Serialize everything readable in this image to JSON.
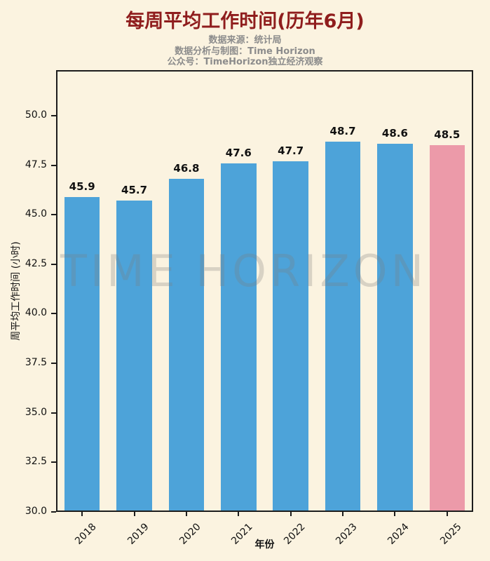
{
  "title": "每周平均工作时间(历年6月)",
  "subtitle_lines": [
    "数据来源：统计局",
    "数据分析与制图：Time Horizon",
    "公众号：TimeHorizon独立经济观察"
  ],
  "watermark": "TIME HORIZON",
  "colors": {
    "background": "#fbf3e0",
    "bar": "#4da3d9",
    "bar_highlight": "#ec9aa9",
    "title": "#8f1d1d",
    "subtitle": "#8c8c8c",
    "axis": "#1c1c1c"
  },
  "chart_data": {
    "type": "bar",
    "title": "每周平均工作时间(历年6月)",
    "categories": [
      "2018",
      "2019",
      "2020",
      "2021",
      "2022",
      "2023",
      "2024",
      "2025"
    ],
    "values": [
      45.9,
      45.7,
      46.8,
      47.6,
      47.7,
      48.7,
      48.6,
      48.5
    ],
    "highlight_category": "2025",
    "xlabel": "年份",
    "ylabel": "周平均工作时间 (小时)",
    "ylim": [
      30,
      52.3
    ],
    "yticks": [
      30.0,
      32.5,
      35.0,
      37.5,
      40.0,
      42.5,
      45.0,
      47.5,
      50.0
    ],
    "grid": false,
    "bar_labels": true,
    "legend": null
  }
}
